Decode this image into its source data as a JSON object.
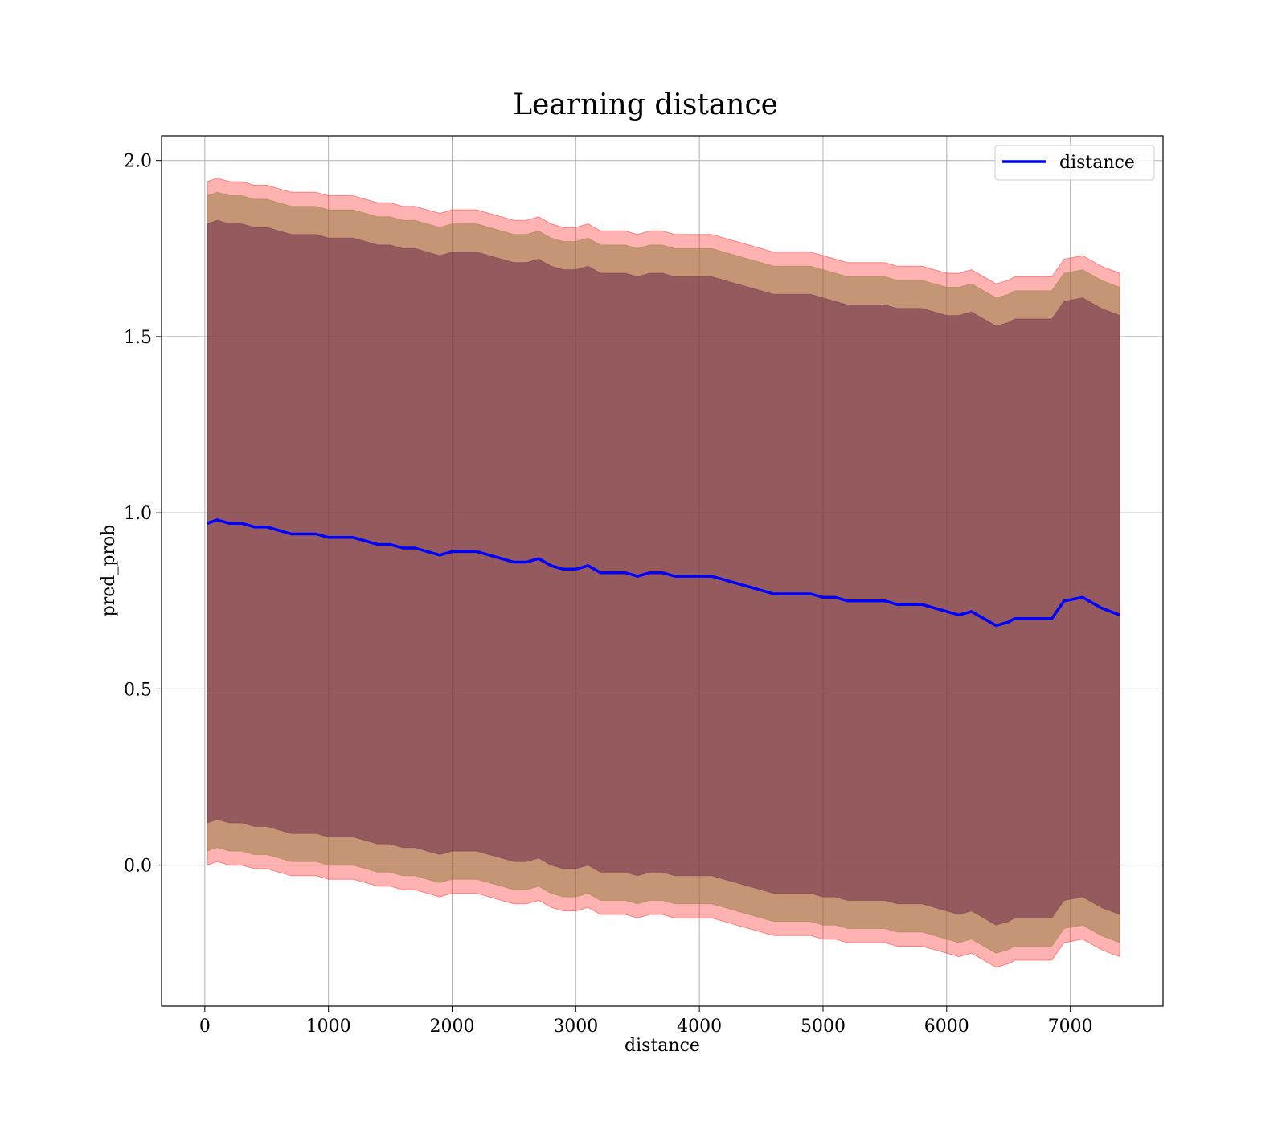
{
  "chart_data": {
    "type": "line",
    "title": "Learning distance",
    "xlabel": "distance",
    "ylabel": "pred_prob",
    "xlim": [
      -350,
      7750
    ],
    "ylim": [
      -0.4,
      2.07
    ],
    "xticks": [
      0,
      1000,
      2000,
      3000,
      4000,
      5000,
      6000,
      7000
    ],
    "xtick_labels": [
      "0",
      "1000",
      "2000",
      "3000",
      "4000",
      "5000",
      "6000",
      "7000"
    ],
    "yticks": [
      0.0,
      0.5,
      1.0,
      1.5,
      2.0
    ],
    "ytick_labels": [
      "0.0",
      "0.5",
      "1.0",
      "1.5",
      "2.0"
    ],
    "grid": true,
    "legend": {
      "position": "top-right",
      "entries": [
        "distance"
      ]
    },
    "colors": {
      "line": "#0000ff",
      "band_outer": "#ff0000",
      "band_middle": "#8c7a3a",
      "band_inner": "#6b2a4a"
    },
    "series": [
      {
        "name": "distance",
        "x": [
          20,
          100,
          200,
          300,
          400,
          500,
          600,
          700,
          800,
          900,
          1000,
          1100,
          1200,
          1300,
          1400,
          1500,
          1600,
          1700,
          1800,
          1900,
          2000,
          2100,
          2200,
          2300,
          2400,
          2500,
          2600,
          2700,
          2800,
          2900,
          3000,
          3100,
          3200,
          3300,
          3400,
          3500,
          3600,
          3700,
          3800,
          3900,
          4000,
          4100,
          4200,
          4300,
          4400,
          4500,
          4600,
          4700,
          4800,
          4900,
          5000,
          5100,
          5200,
          5300,
          5400,
          5500,
          5600,
          5700,
          5800,
          5900,
          6000,
          6100,
          6200,
          6300,
          6400,
          6500,
          6550,
          6600,
          6700,
          6800,
          6850,
          6950,
          7100,
          7250,
          7400
        ],
        "y": [
          0.97,
          0.98,
          0.97,
          0.97,
          0.96,
          0.96,
          0.95,
          0.94,
          0.94,
          0.94,
          0.93,
          0.93,
          0.93,
          0.92,
          0.91,
          0.91,
          0.9,
          0.9,
          0.89,
          0.88,
          0.89,
          0.89,
          0.89,
          0.88,
          0.87,
          0.86,
          0.86,
          0.87,
          0.85,
          0.84,
          0.84,
          0.85,
          0.83,
          0.83,
          0.83,
          0.82,
          0.83,
          0.83,
          0.82,
          0.82,
          0.82,
          0.82,
          0.81,
          0.8,
          0.79,
          0.78,
          0.77,
          0.77,
          0.77,
          0.77,
          0.76,
          0.76,
          0.75,
          0.75,
          0.75,
          0.75,
          0.74,
          0.74,
          0.74,
          0.73,
          0.72,
          0.71,
          0.72,
          0.7,
          0.68,
          0.69,
          0.7,
          0.7,
          0.7,
          0.7,
          0.7,
          0.75,
          0.76,
          0.73,
          0.71
        ]
      }
    ],
    "bands": [
      {
        "upper": [
          1.94,
          1.95,
          1.94,
          1.94,
          1.93,
          1.93,
          1.92,
          1.91,
          1.91,
          1.91,
          1.9,
          1.9,
          1.9,
          1.89,
          1.88,
          1.88,
          1.87,
          1.87,
          1.86,
          1.85,
          1.86,
          1.86,
          1.86,
          1.85,
          1.84,
          1.83,
          1.83,
          1.84,
          1.82,
          1.81,
          1.81,
          1.82,
          1.8,
          1.8,
          1.8,
          1.79,
          1.8,
          1.8,
          1.79,
          1.79,
          1.79,
          1.79,
          1.78,
          1.77,
          1.76,
          1.75,
          1.74,
          1.74,
          1.74,
          1.74,
          1.73,
          1.72,
          1.71,
          1.71,
          1.71,
          1.71,
          1.7,
          1.7,
          1.7,
          1.69,
          1.68,
          1.68,
          1.69,
          1.67,
          1.65,
          1.66,
          1.67,
          1.67,
          1.67,
          1.67,
          1.67,
          1.72,
          1.73,
          1.7,
          1.68
        ],
        "lower": [
          0.0,
          0.01,
          0.0,
          0.0,
          -0.01,
          -0.01,
          -0.02,
          -0.03,
          -0.03,
          -0.03,
          -0.04,
          -0.04,
          -0.04,
          -0.05,
          -0.06,
          -0.06,
          -0.07,
          -0.07,
          -0.08,
          -0.09,
          -0.08,
          -0.08,
          -0.08,
          -0.09,
          -0.1,
          -0.11,
          -0.11,
          -0.1,
          -0.12,
          -0.13,
          -0.13,
          -0.12,
          -0.14,
          -0.14,
          -0.14,
          -0.15,
          -0.14,
          -0.14,
          -0.15,
          -0.15,
          -0.15,
          -0.15,
          -0.16,
          -0.17,
          -0.18,
          -0.19,
          -0.2,
          -0.2,
          -0.2,
          -0.2,
          -0.21,
          -0.21,
          -0.22,
          -0.22,
          -0.22,
          -0.22,
          -0.23,
          -0.23,
          -0.23,
          -0.24,
          -0.25,
          -0.26,
          -0.25,
          -0.27,
          -0.29,
          -0.28,
          -0.27,
          -0.27,
          -0.27,
          -0.27,
          -0.27,
          -0.22,
          -0.21,
          -0.24,
          -0.26
        ]
      },
      {
        "upper": [
          1.9,
          1.91,
          1.9,
          1.9,
          1.89,
          1.89,
          1.88,
          1.87,
          1.87,
          1.87,
          1.86,
          1.86,
          1.86,
          1.85,
          1.84,
          1.84,
          1.83,
          1.83,
          1.82,
          1.81,
          1.82,
          1.82,
          1.82,
          1.81,
          1.8,
          1.79,
          1.79,
          1.8,
          1.78,
          1.77,
          1.77,
          1.78,
          1.76,
          1.76,
          1.76,
          1.75,
          1.76,
          1.76,
          1.75,
          1.75,
          1.75,
          1.75,
          1.74,
          1.73,
          1.72,
          1.71,
          1.7,
          1.7,
          1.7,
          1.7,
          1.69,
          1.68,
          1.67,
          1.67,
          1.67,
          1.67,
          1.66,
          1.66,
          1.66,
          1.65,
          1.64,
          1.64,
          1.65,
          1.63,
          1.61,
          1.62,
          1.63,
          1.63,
          1.63,
          1.63,
          1.63,
          1.68,
          1.69,
          1.66,
          1.64
        ],
        "lower": [
          0.04,
          0.05,
          0.04,
          0.04,
          0.03,
          0.03,
          0.02,
          0.01,
          0.01,
          0.01,
          0.0,
          0.0,
          0.0,
          -0.01,
          -0.02,
          -0.02,
          -0.03,
          -0.03,
          -0.04,
          -0.05,
          -0.04,
          -0.04,
          -0.04,
          -0.05,
          -0.06,
          -0.07,
          -0.07,
          -0.06,
          -0.08,
          -0.09,
          -0.09,
          -0.08,
          -0.1,
          -0.1,
          -0.1,
          -0.11,
          -0.1,
          -0.1,
          -0.11,
          -0.11,
          -0.11,
          -0.11,
          -0.12,
          -0.13,
          -0.14,
          -0.15,
          -0.16,
          -0.16,
          -0.16,
          -0.16,
          -0.17,
          -0.17,
          -0.18,
          -0.18,
          -0.18,
          -0.18,
          -0.19,
          -0.19,
          -0.19,
          -0.2,
          -0.21,
          -0.22,
          -0.21,
          -0.23,
          -0.25,
          -0.24,
          -0.23,
          -0.23,
          -0.23,
          -0.23,
          -0.23,
          -0.18,
          -0.17,
          -0.2,
          -0.22
        ]
      },
      {
        "upper": [
          1.82,
          1.83,
          1.82,
          1.82,
          1.81,
          1.81,
          1.8,
          1.79,
          1.79,
          1.79,
          1.78,
          1.78,
          1.78,
          1.77,
          1.76,
          1.76,
          1.75,
          1.75,
          1.74,
          1.73,
          1.74,
          1.74,
          1.74,
          1.73,
          1.72,
          1.71,
          1.71,
          1.72,
          1.7,
          1.69,
          1.69,
          1.7,
          1.68,
          1.68,
          1.68,
          1.67,
          1.68,
          1.68,
          1.67,
          1.67,
          1.67,
          1.67,
          1.66,
          1.65,
          1.64,
          1.63,
          1.62,
          1.62,
          1.62,
          1.62,
          1.61,
          1.6,
          1.59,
          1.59,
          1.59,
          1.59,
          1.58,
          1.58,
          1.58,
          1.57,
          1.56,
          1.56,
          1.57,
          1.55,
          1.53,
          1.54,
          1.55,
          1.55,
          1.55,
          1.55,
          1.55,
          1.6,
          1.61,
          1.58,
          1.56
        ],
        "lower": [
          0.12,
          0.13,
          0.12,
          0.12,
          0.11,
          0.11,
          0.1,
          0.09,
          0.09,
          0.09,
          0.08,
          0.08,
          0.08,
          0.07,
          0.06,
          0.06,
          0.05,
          0.05,
          0.04,
          0.03,
          0.04,
          0.04,
          0.04,
          0.03,
          0.02,
          0.01,
          0.01,
          0.02,
          0.0,
          -0.01,
          -0.01,
          0.0,
          -0.02,
          -0.02,
          -0.02,
          -0.03,
          -0.02,
          -0.02,
          -0.03,
          -0.03,
          -0.03,
          -0.03,
          -0.04,
          -0.05,
          -0.06,
          -0.07,
          -0.08,
          -0.08,
          -0.08,
          -0.08,
          -0.09,
          -0.09,
          -0.1,
          -0.1,
          -0.1,
          -0.1,
          -0.11,
          -0.11,
          -0.11,
          -0.12,
          -0.13,
          -0.14,
          -0.13,
          -0.15,
          -0.17,
          -0.16,
          -0.15,
          -0.15,
          -0.15,
          -0.15,
          -0.15,
          -0.1,
          -0.09,
          -0.12,
          -0.14
        ]
      }
    ]
  }
}
